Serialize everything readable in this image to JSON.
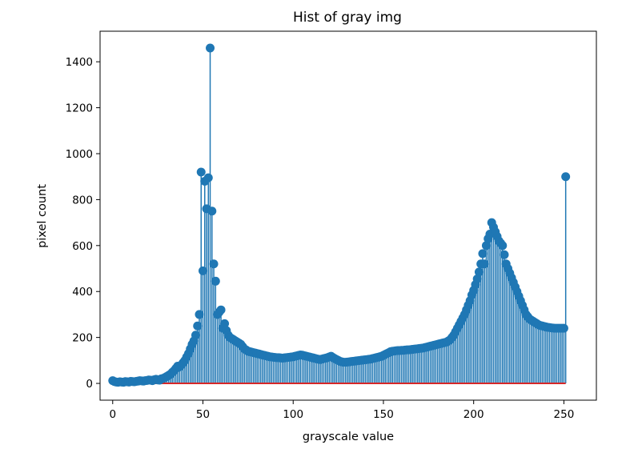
{
  "chart_data": {
    "type": "stem",
    "title": "Hist of gray img",
    "xlabel": "grayscale value",
    "ylabel": "pixel count",
    "xlim": [
      -7,
      268
    ],
    "ylim": [
      -73,
      1533
    ],
    "xticks": [
      0,
      50,
      100,
      150,
      200,
      250
    ],
    "yticks": [
      0,
      200,
      400,
      600,
      800,
      1000,
      1200,
      1400
    ],
    "grid": false,
    "colors": {
      "stem": "#1f77b4",
      "baseline": "#d62728",
      "axes": "#000000"
    },
    "series": [
      {
        "x_start": 0,
        "x_step": 1,
        "values": [
          12,
          8,
          6,
          5,
          7,
          6,
          5,
          8,
          7,
          6,
          9,
          8,
          7,
          9,
          10,
          12,
          11,
          10,
          12,
          13,
          15,
          14,
          12,
          16,
          18,
          15,
          14,
          20,
          22,
          26,
          30,
          35,
          40,
          48,
          55,
          65,
          75,
          72,
          80,
          90,
          100,
          115,
          130,
          150,
          170,
          185,
          210,
          250,
          300,
          920,
          490,
          880,
          760,
          895,
          1460,
          750,
          520,
          445,
          300,
          310,
          320,
          240,
          260,
          230,
          210,
          200,
          195,
          190,
          185,
          180,
          175,
          170,
          160,
          150,
          145,
          140,
          138,
          136,
          134,
          132,
          130,
          128,
          126,
          124,
          122,
          120,
          118,
          116,
          115,
          114,
          113,
          112,
          112,
          111,
          110,
          111,
          112,
          113,
          114,
          115,
          116,
          118,
          120,
          122,
          124,
          123,
          121,
          119,
          117,
          115,
          113,
          111,
          109,
          107,
          105,
          104,
          106,
          108,
          110,
          112,
          115,
          118,
          113,
          108,
          104,
          100,
          96,
          94,
          92,
          92,
          93,
          94,
          95,
          96,
          97,
          98,
          99,
          100,
          101,
          102,
          103,
          104,
          105,
          106,
          108,
          110,
          112,
          114,
          116,
          118,
          122,
          126,
          130,
          134,
          138,
          140,
          141,
          142,
          143,
          143,
          144,
          144,
          145,
          146,
          146,
          147,
          148,
          149,
          150,
          151,
          152,
          153,
          154,
          156,
          158,
          160,
          162,
          164,
          166,
          168,
          170,
          172,
          174,
          176,
          178,
          180,
          185,
          190,
          200,
          210,
          225,
          240,
          255,
          270,
          285,
          300,
          320,
          340,
          360,
          385,
          405,
          430,
          455,
          485,
          520,
          565,
          520,
          600,
          630,
          650,
          700,
          680,
          660,
          640,
          620,
          610,
          600,
          560,
          520,
          500,
          480,
          460,
          440,
          420,
          400,
          380,
          360,
          340,
          320,
          300,
          290,
          280,
          275,
          270,
          265,
          260,
          255,
          252,
          250,
          248,
          246,
          244,
          243,
          242,
          241,
          240,
          240,
          240,
          240,
          240,
          240,
          900
        ]
      }
    ]
  }
}
